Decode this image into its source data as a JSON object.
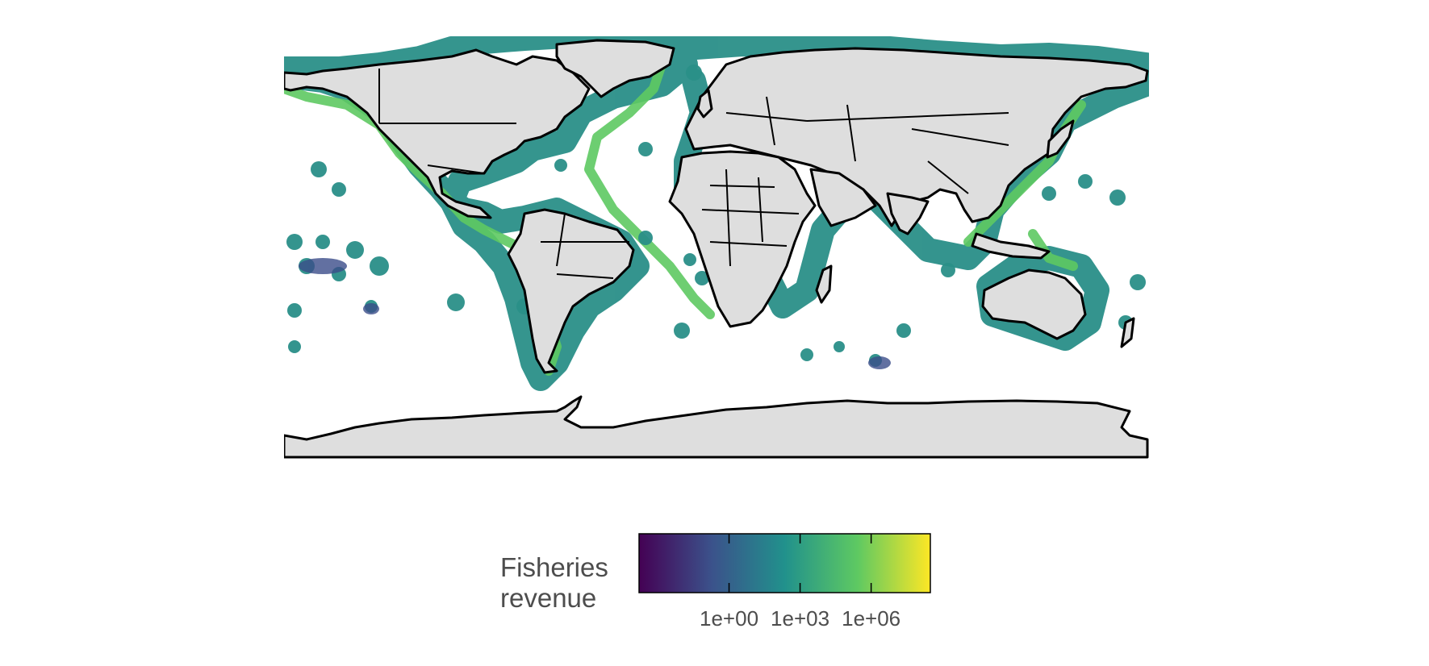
{
  "map": {
    "projection": "equirectangular",
    "land_color": "#dedede",
    "border_color": "#000000",
    "ocean_color": "#ffffff"
  },
  "legend": {
    "title_line1": "Fisheries",
    "title_line2": "revenue",
    "palette": "viridis",
    "scale": "log10",
    "range_exponent": [
      -3.8,
      8.5
    ],
    "colors": [
      "#440154",
      "#3b528b",
      "#21918c",
      "#5ec962",
      "#fde725"
    ],
    "ticks": [
      {
        "label": "1e+00",
        "exponent": 0
      },
      {
        "label": "1e+03",
        "exponent": 3
      },
      {
        "label": "1e+06",
        "exponent": 6
      }
    ]
  }
}
